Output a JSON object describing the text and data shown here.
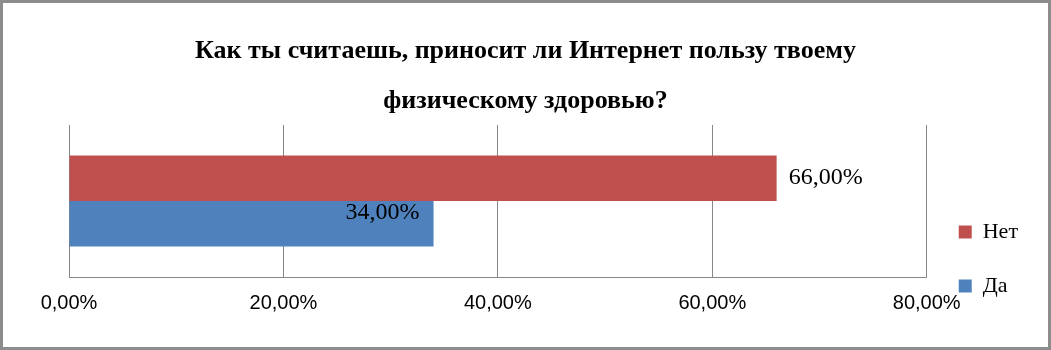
{
  "chart_data": {
    "type": "bar",
    "orientation": "horizontal",
    "title": "Как ты считаешь, приносит  ли Интернет  пользу твоему физическому здоровью?",
    "categories": [
      null
    ],
    "series": [
      {
        "name": "Нет",
        "color": "#c0504d",
        "values": [
          66
        ],
        "value_labels": [
          "66,00%"
        ]
      },
      {
        "name": "Да",
        "color": "#4f81bd",
        "values": [
          34
        ],
        "value_labels": [
          "34,00%"
        ]
      }
    ],
    "xlim": [
      0,
      80
    ],
    "xticks": [
      {
        "value": 0,
        "label": "0,00%"
      },
      {
        "value": 20,
        "label": "20,00%"
      },
      {
        "value": 40,
        "label": "40,00%"
      },
      {
        "value": 60,
        "label": "60,00%"
      },
      {
        "value": 80,
        "label": "80,00%"
      }
    ],
    "grid": "x",
    "legend": "right"
  }
}
